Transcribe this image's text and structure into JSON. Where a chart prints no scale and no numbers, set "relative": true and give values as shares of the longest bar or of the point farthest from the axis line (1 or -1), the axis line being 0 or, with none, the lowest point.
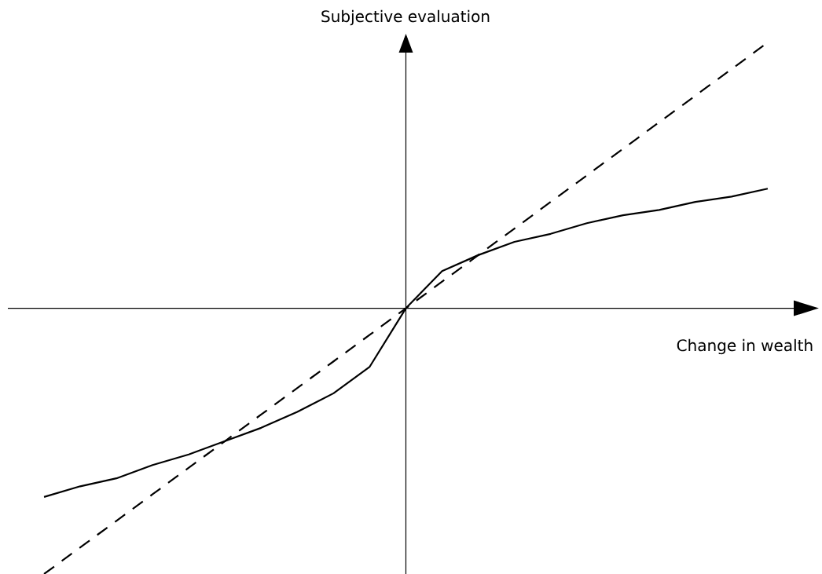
{
  "chart_data": {
    "type": "line",
    "relative": true,
    "ylabel": "Subjective evaluation",
    "xlabel": "Change in wealth",
    "categories": [
      null,
      null,
      null,
      null,
      null,
      null,
      null,
      null,
      null,
      null,
      null,
      null,
      null,
      null,
      null,
      null,
      null,
      null,
      null,
      null,
      null
    ],
    "series": [
      {
        "color": "#000000",
        "line_style": "solid",
        "values": [
          -0.71,
          -0.67,
          -0.64,
          -0.59,
          -0.55,
          -0.5,
          -0.45,
          -0.39,
          -0.32,
          -0.22,
          0,
          0.14,
          0.2,
          0.25,
          0.28,
          0.32,
          0.35,
          0.37,
          0.4,
          0.42,
          0.45
        ]
      },
      {
        "color": "#000000",
        "line_style": "dashed",
        "values": [
          -1,
          -0.9,
          -0.8,
          -0.7,
          -0.6,
          -0.5,
          -0.4,
          -0.3,
          -0.2,
          -0.1,
          0,
          0.1,
          0.2,
          0.3,
          0.4,
          0.5,
          0.6,
          0.7,
          0.8,
          0.9,
          1
        ]
      }
    ]
  }
}
